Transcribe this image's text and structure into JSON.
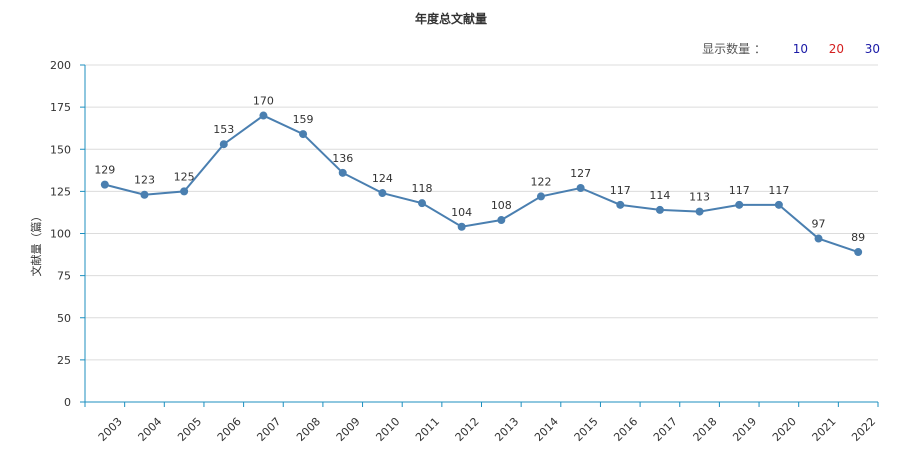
{
  "title": "年度总文献量",
  "count_selector": {
    "label": "显示数量 ：",
    "options": [
      {
        "label": "10",
        "color": "#1a1aa6"
      },
      {
        "label": "20",
        "color": "#d42020"
      },
      {
        "label": "30",
        "color": "#1a1aa6"
      }
    ]
  },
  "colors": {
    "line": "#4a7fb0",
    "axis": "#1c8fbf",
    "grid": "#dcdcdc"
  },
  "chart_data": {
    "type": "line",
    "title": "年度总文献量",
    "xlabel": "",
    "ylabel": "文献量（篇）",
    "ylim": [
      0,
      200
    ],
    "yticks": [
      0,
      25,
      50,
      75,
      100,
      125,
      150,
      175,
      200
    ],
    "grid": true,
    "categories": [
      "2003",
      "2004",
      "2005",
      "2006",
      "2007",
      "2008",
      "2009",
      "2010",
      "2011",
      "2012",
      "2013",
      "2014",
      "2015",
      "2016",
      "2017",
      "2018",
      "2019",
      "2020",
      "2021",
      "2022"
    ],
    "values": [
      129,
      123,
      125,
      153,
      170,
      159,
      136,
      124,
      118,
      104,
      108,
      122,
      127,
      117,
      114,
      113,
      117,
      117,
      97,
      89
    ]
  }
}
